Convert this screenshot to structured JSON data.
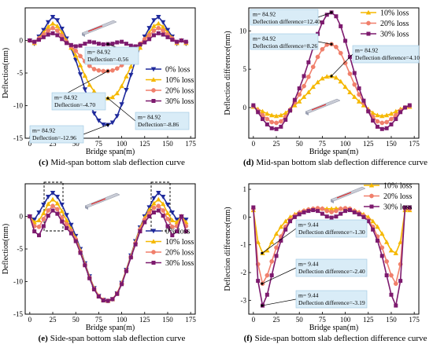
{
  "chart_data": [
    {
      "type": "line",
      "panel_letter": "(c)",
      "caption": "Mid-span bottom slab deflection curve",
      "xlabel": "Bridge span(m)",
      "ylabel": "Deflection(mm)",
      "xlim": [
        -5,
        180
      ],
      "ylim": [
        -15,
        5
      ],
      "xticks": [
        0,
        25,
        50,
        75,
        100,
        125,
        150,
        175
      ],
      "yticks": [
        -15,
        -10,
        -5,
        0
      ],
      "grid": false,
      "legend_position": "right",
      "x": [
        0,
        5,
        10,
        15,
        20,
        25,
        30,
        35,
        40,
        45,
        50,
        55,
        60,
        65,
        70,
        75,
        80,
        85,
        90,
        95,
        100,
        105,
        110,
        115,
        120,
        125,
        130,
        135,
        140,
        145,
        150,
        155,
        160,
        165,
        170
      ],
      "series": [
        {
          "name": "0%   loss",
          "color": "#1f2a9c",
          "marker": "triangle-down",
          "values": [
            0,
            -0.5,
            0.6,
            1.6,
            2.8,
            3.6,
            3.1,
            1.8,
            0.3,
            -1.2,
            -3.0,
            -5.2,
            -7.5,
            -9.6,
            -11.2,
            -12.3,
            -12.9,
            -12.96,
            -12.6,
            -11.6,
            -9.8,
            -7.6,
            -5.3,
            -3.0,
            -1.0,
            0.6,
            1.9,
            3.1,
            3.6,
            2.8,
            1.6,
            0.6,
            -0.5,
            0,
            -0.5
          ]
        },
        {
          "name": "10% loss",
          "color": "#f5b800",
          "marker": "triangle-up",
          "values": [
            0,
            -0.4,
            0.4,
            1.2,
            2.1,
            2.6,
            2.2,
            1.2,
            0.0,
            -1.1,
            -2.3,
            -3.8,
            -5.4,
            -6.8,
            -7.8,
            -8.4,
            -8.8,
            -8.86,
            -8.7,
            -8.1,
            -7.0,
            -5.5,
            -4.0,
            -2.4,
            -1.1,
            0.2,
            1.2,
            2.2,
            2.6,
            2.1,
            1.2,
            0.4,
            -0.4,
            0,
            -0.4
          ]
        },
        {
          "name": "20% loss",
          "color": "#f07f6b",
          "marker": "circle",
          "values": [
            0,
            -0.3,
            0.3,
            0.9,
            1.5,
            1.9,
            1.5,
            0.7,
            -0.2,
            -0.9,
            -1.6,
            -2.4,
            -3.2,
            -3.9,
            -4.4,
            -4.6,
            -4.7,
            -4.7,
            -4.6,
            -4.3,
            -3.8,
            -3.0,
            -2.1,
            -1.3,
            -0.5,
            0.2,
            0.8,
            1.5,
            1.9,
            1.5,
            0.9,
            0.3,
            -0.3,
            0,
            -0.3
          ]
        },
        {
          "name": "30% loss",
          "color": "#7d1a6e",
          "marker": "square",
          "values": [
            0,
            -0.2,
            0.1,
            0.5,
            0.9,
            1.1,
            0.8,
            0.2,
            -0.4,
            -0.7,
            -0.9,
            -0.8,
            -0.5,
            -0.2,
            -0.3,
            -0.5,
            -0.6,
            -0.56,
            -0.5,
            -0.3,
            -0.2,
            -0.5,
            -0.8,
            -0.9,
            -0.6,
            -0.3,
            0.2,
            0.8,
            1.1,
            0.9,
            0.5,
            0.1,
            -0.2,
            0,
            -0.2
          ]
        }
      ],
      "annotations": [
        {
          "lines": [
            "m= 84.92",
            "Deflection=-0.56"
          ],
          "x": 84.92,
          "y": -0.56
        },
        {
          "lines": [
            "m= 84.92",
            "Deflection=-4.70"
          ],
          "x": 84.92,
          "y": -4.7
        },
        {
          "lines": [
            "m= 84.92",
            "Deflection=-8.86"
          ],
          "x": 84.92,
          "y": -8.86
        },
        {
          "lines": [
            "m= 84.92",
            "Deflection=-12.96"
          ],
          "x": 84.92,
          "y": -12.96
        }
      ]
    },
    {
      "type": "line",
      "panel_letter": "(d)",
      "caption": "Mid-span bottom slab deflection difference curve",
      "xlabel": "Bridge span(m)",
      "ylabel": "Deflection difference(mm)",
      "xlim": [
        -5,
        180
      ],
      "ylim": [
        -4,
        13
      ],
      "xticks": [
        0,
        25,
        50,
        75,
        100,
        125,
        150,
        175
      ],
      "yticks": [
        0,
        5,
        10
      ],
      "grid": false,
      "legend_position": "top-right",
      "x": [
        0,
        5,
        10,
        15,
        20,
        25,
        30,
        35,
        40,
        45,
        50,
        55,
        60,
        65,
        70,
        75,
        80,
        85,
        90,
        95,
        100,
        105,
        110,
        115,
        120,
        125,
        130,
        135,
        140,
        145,
        150,
        155,
        160,
        165,
        170
      ],
      "series": [
        {
          "name": "10% loss",
          "color": "#f5b800",
          "marker": "triangle-up",
          "values": [
            0.1,
            -0.2,
            -0.5,
            -0.8,
            -1.0,
            -1.1,
            -1.0,
            -0.7,
            -0.2,
            0.3,
            0.8,
            1.4,
            2.0,
            2.7,
            3.3,
            3.8,
            4.05,
            4.1,
            3.9,
            3.4,
            2.7,
            2.0,
            1.4,
            0.8,
            0.3,
            -0.2,
            -0.7,
            -1.0,
            -1.1,
            -1.0,
            -0.8,
            -0.5,
            -0.2,
            0.0,
            0.1
          ]
        },
        {
          "name": "20% loss",
          "color": "#f07f6b",
          "marker": "circle",
          "values": [
            0.2,
            -0.4,
            -1.0,
            -1.5,
            -1.9,
            -2.0,
            -1.8,
            -1.2,
            -0.3,
            0.7,
            1.7,
            2.8,
            4.0,
            5.3,
            6.6,
            7.6,
            8.2,
            8.26,
            7.9,
            7.1,
            5.8,
            4.4,
            3.0,
            1.7,
            0.6,
            -0.4,
            -1.2,
            -1.8,
            -2.0,
            -1.9,
            -1.5,
            -1.0,
            -0.4,
            0.0,
            0.2
          ]
        },
        {
          "name": "30% loss",
          "color": "#7d1a6e",
          "marker": "square",
          "values": [
            0.3,
            -0.6,
            -1.5,
            -2.2,
            -2.7,
            -2.8,
            -2.5,
            -1.6,
            -0.4,
            1.0,
            2.5,
            4.1,
            5.9,
            7.8,
            9.6,
            11.1,
            12.1,
            12.4,
            11.9,
            10.6,
            8.7,
            6.6,
            4.5,
            2.5,
            0.9,
            -0.5,
            -1.7,
            -2.5,
            -2.8,
            -2.7,
            -2.2,
            -1.5,
            -0.6,
            0.0,
            0.3
          ]
        }
      ],
      "annotations": [
        {
          "lines": [
            "m= 84.92",
            "Deflection difference=12.40"
          ],
          "x": 84.92,
          "y": 12.4
        },
        {
          "lines": [
            "m= 84.92",
            "Deflection difference=8.26"
          ],
          "x": 84.92,
          "y": 8.26
        },
        {
          "lines": [
            "m= 84.92",
            "Deflection difference=4.10"
          ],
          "x": 84.92,
          "y": 4.1
        }
      ]
    },
    {
      "type": "line",
      "panel_letter": "(e)",
      "caption": "Side-span bottom slab deflection curve",
      "xlabel": "Bridge span(m)",
      "ylabel": "Deflection(mm)",
      "xlim": [
        -5,
        180
      ],
      "ylim": [
        -15,
        5
      ],
      "xticks": [
        0,
        25,
        50,
        75,
        100,
        125,
        150,
        175
      ],
      "yticks": [
        -15,
        -10,
        -5,
        0
      ],
      "grid": false,
      "legend_position": "bottom-right",
      "x": [
        0,
        5,
        10,
        15,
        20,
        25,
        30,
        35,
        40,
        45,
        50,
        55,
        60,
        65,
        70,
        75,
        80,
        85,
        90,
        95,
        100,
        105,
        110,
        115,
        120,
        125,
        130,
        135,
        140,
        145,
        150,
        155,
        160,
        165,
        170
      ],
      "series": [
        {
          "name": "0%   loss",
          "color": "#1f2a9c",
          "marker": "triangle-down",
          "values": [
            0,
            -0.5,
            0.6,
            1.8,
            3.0,
            3.6,
            3.0,
            1.8,
            0.2,
            -1.3,
            -3.0,
            -5.0,
            -7.2,
            -9.2,
            -11.0,
            -12.2,
            -12.8,
            -12.96,
            -12.7,
            -11.8,
            -10.2,
            -8.2,
            -6.0,
            -3.8,
            -1.7,
            0.0,
            1.4,
            2.8,
            3.6,
            3.0,
            1.8,
            0.6,
            -0.5,
            0,
            -0.5
          ]
        },
        {
          "name": "10% loss",
          "color": "#f5b800",
          "marker": "triangle-up",
          "values": [
            0,
            -0.9,
            -0.6,
            0.5,
            1.9,
            2.6,
            2.0,
            0.8,
            -0.6,
            -1.9,
            -3.3,
            -5.2,
            -7.3,
            -9.3,
            -11.0,
            -12.2,
            -12.8,
            -12.96,
            -12.7,
            -11.8,
            -10.2,
            -8.2,
            -6.1,
            -3.9,
            -1.8,
            -0.2,
            1.0,
            2.0,
            2.6,
            1.9,
            0.5,
            -0.6,
            -0.9,
            0,
            -0.9
          ]
        },
        {
          "name": "20% loss",
          "color": "#f07f6b",
          "marker": "circle",
          "values": [
            0,
            -1.5,
            -1.6,
            -0.4,
            0.9,
            1.6,
            1.1,
            -0.2,
            -1.2,
            -2.2,
            -3.5,
            -5.4,
            -7.4,
            -9.4,
            -11.1,
            -12.2,
            -12.8,
            -12.96,
            -12.7,
            -11.8,
            -10.3,
            -8.3,
            -6.2,
            -4.1,
            -2.0,
            -0.5,
            0.5,
            1.3,
            1.6,
            0.9,
            -0.4,
            -1.6,
            -1.5,
            0,
            -1.5
          ]
        },
        {
          "name": "30% loss",
          "color": "#7d1a6e",
          "marker": "square",
          "values": [
            0,
            -2.3,
            -2.9,
            -1.5,
            0.1,
            0.9,
            0.4,
            -0.8,
            -1.8,
            -2.6,
            -3.8,
            -5.6,
            -7.5,
            -9.5,
            -11.2,
            -12.3,
            -12.9,
            -12.96,
            -12.7,
            -11.9,
            -10.4,
            -8.4,
            -6.3,
            -4.3,
            -2.3,
            -0.9,
            0.0,
            0.6,
            0.9,
            0.1,
            -1.5,
            -2.9,
            -2.3,
            0,
            -2.3
          ]
        }
      ],
      "annotations": []
    },
    {
      "type": "line",
      "panel_letter": "(f)",
      "caption": "Side-span bottom slab deflection difference curve",
      "xlabel": "Bridge span(m)",
      "ylabel": "Deflection difference(mm)",
      "xlim": [
        -5,
        180
      ],
      "ylim": [
        -3.5,
        1.2
      ],
      "xticks": [
        0,
        25,
        50,
        75,
        100,
        125,
        150,
        175
      ],
      "yticks": [
        -3,
        -2,
        -1,
        0,
        1
      ],
      "grid": false,
      "legend_position": "top-right",
      "x": [
        0,
        5,
        10,
        15,
        20,
        25,
        30,
        35,
        40,
        45,
        50,
        55,
        60,
        65,
        70,
        75,
        80,
        85,
        90,
        95,
        100,
        105,
        110,
        115,
        120,
        125,
        130,
        135,
        140,
        145,
        150,
        155,
        160,
        165,
        170
      ],
      "series": [
        {
          "name": "10% loss",
          "color": "#f5b800",
          "marker": "triangle-up",
          "values": [
            0.25,
            -0.9,
            -1.3,
            -1.2,
            -0.9,
            -0.6,
            -0.35,
            -0.15,
            0.0,
            0.1,
            0.18,
            0.24,
            0.28,
            0.3,
            0.31,
            0.31,
            0.3,
            0.3,
            0.31,
            0.31,
            0.3,
            0.28,
            0.24,
            0.18,
            0.1,
            0.0,
            -0.15,
            -0.35,
            -0.6,
            -0.9,
            -1.2,
            -1.3,
            -0.9,
            0.25,
            0.25
          ]
        },
        {
          "name": "20% loss",
          "color": "#f07f6b",
          "marker": "circle",
          "values": [
            0.3,
            -1.7,
            -2.4,
            -2.1,
            -1.6,
            -1.1,
            -0.7,
            -0.35,
            -0.1,
            0.05,
            0.15,
            0.22,
            0.27,
            0.3,
            0.32,
            0.3,
            0.22,
            0.18,
            0.22,
            0.3,
            0.32,
            0.3,
            0.22,
            0.15,
            0.05,
            -0.1,
            -0.35,
            -0.7,
            -1.1,
            -1.6,
            -2.1,
            -2.4,
            -1.7,
            0.3,
            0.3
          ]
        },
        {
          "name": "30% loss",
          "color": "#7d1a6e",
          "marker": "square",
          "values": [
            0.35,
            -2.3,
            -3.19,
            -2.8,
            -2.1,
            -1.4,
            -0.85,
            -0.45,
            -0.15,
            0.0,
            0.1,
            0.17,
            0.22,
            0.25,
            0.22,
            0.12,
            0.02,
            -0.02,
            0.02,
            0.12,
            0.22,
            0.25,
            0.17,
            0.1,
            0.0,
            -0.15,
            -0.45,
            -0.85,
            -1.4,
            -2.1,
            -2.8,
            -3.19,
            -2.3,
            0.35,
            0.35
          ]
        }
      ],
      "annotations": [
        {
          "lines": [
            "m= 9.44",
            "Deflection difference=-1.30"
          ],
          "x": 9.44,
          "y": -1.3
        },
        {
          "lines": [
            "m= 9.44",
            "Deflection difference=-2.40"
          ],
          "x": 9.44,
          "y": -2.4
        },
        {
          "lines": [
            "m= 9.44",
            "Deflection difference=-3.19"
          ],
          "x": 9.44,
          "y": -3.19
        }
      ]
    }
  ]
}
